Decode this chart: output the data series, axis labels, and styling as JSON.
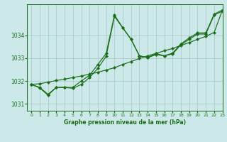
{
  "title": "Graphe pression niveau de la mer (hPa)",
  "background_color": "#cce8e8",
  "grid_color": "#aacccc",
  "line_color": "#1a6e1a",
  "xlim": [
    -0.5,
    23
  ],
  "ylim": [
    1030.7,
    1035.35
  ],
  "yticks": [
    1031,
    1032,
    1033,
    1034
  ],
  "xticks": [
    0,
    1,
    2,
    3,
    4,
    5,
    6,
    7,
    8,
    9,
    10,
    11,
    12,
    13,
    14,
    15,
    16,
    17,
    18,
    19,
    20,
    21,
    22,
    23
  ],
  "series1_x": [
    0,
    1,
    2,
    3,
    4,
    5,
    6,
    7,
    8,
    9,
    10,
    11,
    12,
    13,
    14,
    15,
    16,
    17,
    18,
    19,
    20,
    21,
    22,
    23
  ],
  "series1_y": [
    1031.85,
    1031.72,
    1031.42,
    1031.72,
    1031.72,
    1031.68,
    1031.85,
    1032.15,
    1032.55,
    1033.08,
    1034.82,
    1034.32,
    1033.82,
    1033.1,
    1033.02,
    1033.15,
    1033.1,
    1033.18,
    1033.58,
    1033.82,
    1034.05,
    1034.05,
    1034.88,
    1035.05
  ],
  "series2_x": [
    0,
    1,
    2,
    3,
    4,
    5,
    6,
    7,
    8,
    9,
    10,
    11,
    12,
    13,
    14,
    15,
    16,
    17,
    18,
    19,
    20,
    21,
    22,
    23
  ],
  "series2_y": [
    1031.85,
    1031.7,
    1031.38,
    1031.72,
    1031.72,
    1031.72,
    1032.0,
    1032.25,
    1032.72,
    1033.2,
    1034.88,
    1034.32,
    1033.82,
    1033.1,
    1033.02,
    1033.2,
    1033.1,
    1033.22,
    1033.62,
    1033.88,
    1034.1,
    1034.1,
    1034.92,
    1035.1
  ],
  "series3_x": [
    0,
    1,
    2,
    3,
    4,
    5,
    6,
    7,
    8,
    9,
    10,
    11,
    12,
    13,
    14,
    15,
    16,
    17,
    18,
    19,
    20,
    21,
    22,
    23
  ],
  "series3_y": [
    1031.85,
    1031.88,
    1031.95,
    1032.02,
    1032.08,
    1032.15,
    1032.22,
    1032.3,
    1032.38,
    1032.48,
    1032.58,
    1032.72,
    1032.85,
    1032.98,
    1033.1,
    1033.2,
    1033.32,
    1033.42,
    1033.55,
    1033.68,
    1033.82,
    1033.95,
    1034.12,
    1035.1
  ]
}
